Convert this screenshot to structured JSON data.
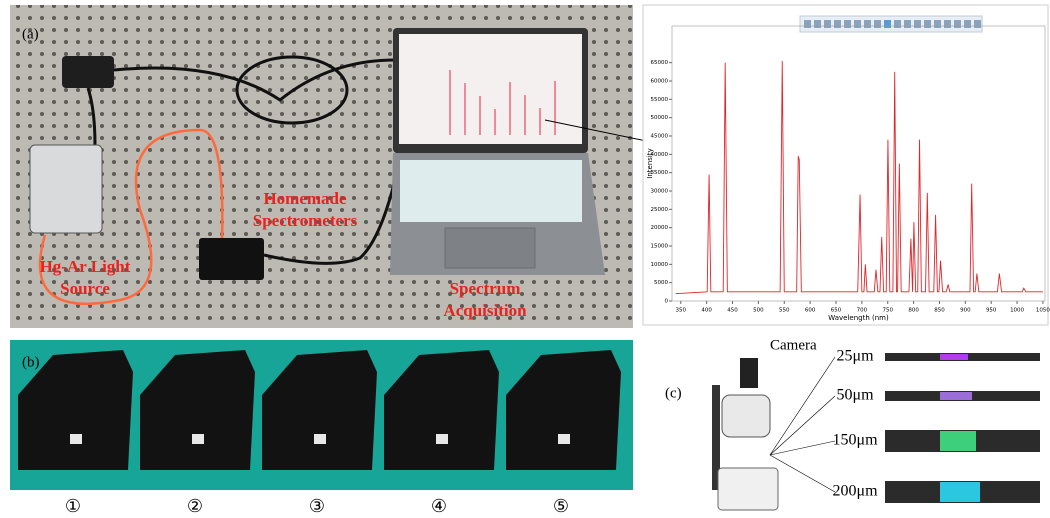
{
  "figure": {
    "panel_a": {
      "label": "(a)",
      "spectrometers_lines": [
        "Homemade",
        "Spectrometers"
      ],
      "light_source_lines": [
        "Hg-Ar Light",
        "Source"
      ],
      "acquisition_lines": [
        "Spectrum",
        "Acquisition"
      ]
    },
    "panel_b": {
      "label": "(b)",
      "numbers": [
        "①",
        "②",
        "③",
        "④",
        "⑤"
      ]
    },
    "panel_c": {
      "label": "(c)",
      "camera": "Camera",
      "slits": [
        "25μm",
        "50μm",
        "150μm",
        "200μm"
      ]
    }
  },
  "chart_data": {
    "type": "line",
    "x_label": "Wavelength (nm)",
    "y_label": "Intensity",
    "x": [
      340,
      401,
      404.7,
      408,
      432,
      435.8,
      440,
      542,
      546.1,
      550,
      574,
      577,
      579,
      583,
      692,
      696.5,
      700,
      704,
      706.7,
      710,
      724,
      727.3,
      731,
      735,
      738.4,
      742,
      747,
      750.4,
      754,
      760,
      763.5,
      767,
      769,
      772.4,
      776,
      791,
      794.8,
      798,
      800.6,
      804,
      808,
      811.5,
      815,
      823,
      826.5,
      830,
      839,
      842.5,
      846,
      849,
      852.1,
      856,
      863,
      866.8,
      870,
      909,
      912.3,
      916,
      919,
      922.4,
      926,
      962,
      965.8,
      970,
      1010,
      1013,
      1017,
      1050
    ],
    "series": [
      {
        "color": "#e0262b",
        "values": [
          2000,
          2500,
          34500,
          2500,
          2500,
          65000,
          2500,
          2500,
          65500,
          2500,
          2500,
          39500,
          38500,
          2500,
          2500,
          29000,
          2500,
          2500,
          10000,
          2500,
          2500,
          8500,
          2500,
          2500,
          17500,
          2500,
          2500,
          44000,
          2500,
          2500,
          62500,
          2500,
          2500,
          37500,
          2500,
          2500,
          17000,
          2500,
          21500,
          2500,
          2500,
          44000,
          2500,
          2500,
          29500,
          2500,
          2500,
          23500,
          2500,
          2500,
          11000,
          2500,
          2500,
          4500,
          2500,
          2500,
          32000,
          2500,
          2500,
          7500,
          2500,
          2500,
          7500,
          2500,
          2500,
          3500,
          2500,
          2500
        ]
      }
    ],
    "xlim": [
      333,
      1054
    ],
    "ylim": [
      0,
      75000
    ],
    "xticks": [
      350,
      400,
      450,
      500,
      550,
      600,
      650,
      700,
      750,
      800,
      850,
      900,
      950,
      1000,
      1050
    ],
    "yticks": [
      0,
      5000,
      10000,
      15000,
      20000,
      25000,
      30000,
      35000,
      40000,
      45000,
      50000,
      55000,
      60000,
      65000
    ]
  }
}
